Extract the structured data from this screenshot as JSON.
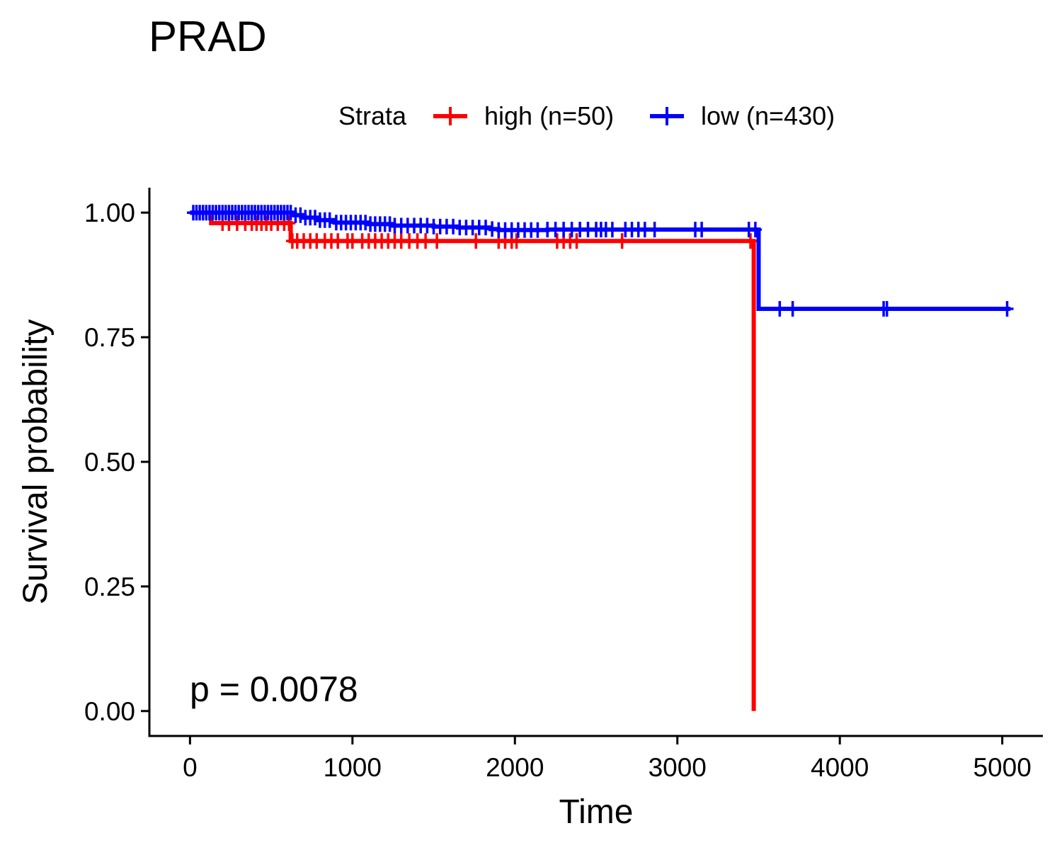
{
  "chart_data": {
    "type": "line",
    "subtype": "kaplan-meier-step",
    "title": "PRAD",
    "xlabel": "Time",
    "ylabel": "Survival probability",
    "xlim": [
      -250,
      5250
    ],
    "ylim": [
      -0.05,
      1.05
    ],
    "xticks": [
      0,
      1000,
      2000,
      3000,
      4000,
      5000
    ],
    "yticks": [
      0,
      0.25,
      0.5,
      0.75,
      1
    ],
    "ytick_labels": [
      "0.00",
      "0.25",
      "0.50",
      "0.75",
      "1.00"
    ],
    "grid": false,
    "legend": {
      "title": "Strata",
      "position": "top"
    },
    "annotation": "p = 0.0078",
    "series": [
      {
        "name": "high (n=50)",
        "color": "#ff0000",
        "steps": [
          [
            0,
            1.0
          ],
          [
            130,
            0.979
          ],
          [
            620,
            0.943
          ],
          [
            3470,
            0.0
          ]
        ],
        "censor_times": [
          200,
          240,
          290,
          340,
          380,
          410,
          440,
          470,
          500,
          540,
          580,
          610,
          630,
          660,
          700,
          740,
          780,
          830,
          870,
          910,
          970,
          1000,
          1060,
          1100,
          1140,
          1180,
          1220,
          1260,
          1300,
          1350,
          1400,
          1450,
          1520,
          1760,
          1900,
          1940,
          1980,
          2010,
          2260,
          2300,
          2340,
          2380,
          2660,
          3450
        ]
      },
      {
        "name": "low (n=430)",
        "color": "#0000ff",
        "steps": [
          [
            0,
            1.0
          ],
          [
            640,
            0.995
          ],
          [
            700,
            0.99
          ],
          [
            790,
            0.985
          ],
          [
            890,
            0.98
          ],
          [
            1100,
            0.977
          ],
          [
            1250,
            0.974
          ],
          [
            1500,
            0.972
          ],
          [
            1650,
            0.97
          ],
          [
            1850,
            0.967
          ],
          [
            1900,
            0.965
          ],
          [
            2200,
            0.966
          ],
          [
            3500,
            0.807
          ]
        ],
        "end_time": 5050,
        "censor_times": [
          20,
          40,
          60,
          80,
          100,
          120,
          140,
          160,
          180,
          200,
          220,
          240,
          260,
          280,
          300,
          320,
          340,
          360,
          380,
          400,
          420,
          440,
          460,
          480,
          500,
          520,
          540,
          560,
          580,
          600,
          620,
          650,
          680,
          710,
          740,
          770,
          800,
          830,
          860,
          900,
          930,
          960,
          990,
          1020,
          1050,
          1080,
          1110,
          1140,
          1170,
          1200,
          1230,
          1260,
          1300,
          1340,
          1380,
          1420,
          1460,
          1500,
          1540,
          1580,
          1620,
          1660,
          1700,
          1740,
          1780,
          1820,
          1860,
          1900,
          1940,
          1980,
          2020,
          2060,
          2100,
          2140,
          2200,
          2250,
          2300,
          2350,
          2400,
          2450,
          2500,
          2530,
          2560,
          2600,
          2680,
          2720,
          2760,
          2800,
          2860,
          3110,
          3150,
          3440,
          3480,
          3630,
          3710,
          4270,
          4290,
          5030
        ]
      }
    ]
  }
}
